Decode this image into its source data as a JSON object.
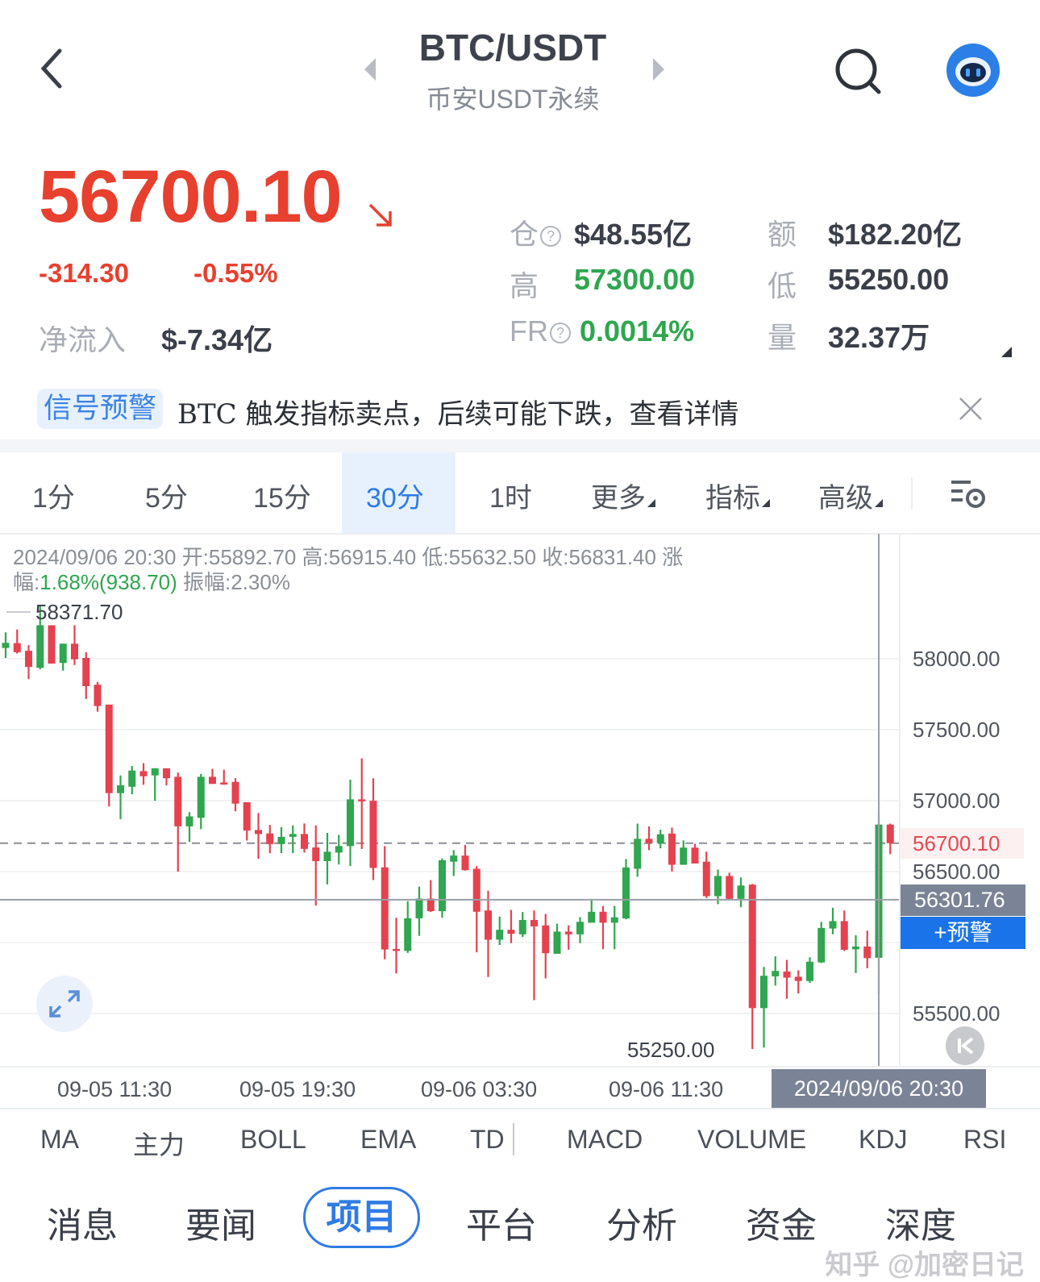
{
  "header": {
    "title": "BTC/USDT",
    "subtitle": "币安USDT永续",
    "icons": [
      "chevron-left-icon",
      "caret-left-icon",
      "caret-right-icon",
      "search-icon",
      "robot-avatar-icon"
    ]
  },
  "quote": {
    "price": "56700.10",
    "change": "-314.30",
    "change_pct": "-0.55%",
    "netflow_label": "净流入",
    "netflow_value": "$-7.34亿",
    "stats": {
      "oi_label": "仓",
      "oi_value": "$48.55亿",
      "amount_label": "额",
      "amount_value": "$182.20亿",
      "high_label": "高",
      "high_value": "57300.00",
      "low_label": "低",
      "low_value": "55250.00",
      "fr_label": "FR",
      "fr_value": "0.0014%",
      "vol_label": "量",
      "vol_value": "32.37万"
    },
    "colors": {
      "down": "#e8402f",
      "up": "#2fa64f"
    }
  },
  "signal": {
    "badge": "信号预警",
    "message": "BTC 触发指标卖点，后续可能下跌，查看详情"
  },
  "timeframes": {
    "items": [
      "1分",
      "5分",
      "15分",
      "30分",
      "1时",
      "更多",
      "指标",
      "高级"
    ],
    "selected": "30分"
  },
  "chart_info": {
    "line1": "2024/09/06 20:30 开:55892.70 高:56915.40 低:55632.50 收:56831.40  涨",
    "line2_prefix": "幅:",
    "line2_change": "1.68%(938.70)",
    "line2_suffix": " 振幅:2.30%"
  },
  "chart_data": {
    "type": "candlestick",
    "interval": "30分",
    "y_ticks": [
      "58000.00",
      "57500.00",
      "57000.00",
      "56500.00",
      "55500.00"
    ],
    "ylim": [
      55100,
      58700
    ],
    "grid": true,
    "max_label": "58371.70",
    "min_label": "55250.00",
    "last_price": "56700.10",
    "crosshair_price": "56301.76",
    "alert_button": "+预警",
    "x_ticks": [
      "09-05 11:30",
      "09-05 19:30",
      "09-06 03:30",
      "09-06 11:30"
    ],
    "crosshair_time": "2024/09/06 20:30",
    "colors": {
      "up": "#2fa64f",
      "down": "#e5414f"
    },
    "candles": [
      {
        "o": 58076,
        "h": 58186,
        "l": 58006,
        "c": 58112
      },
      {
        "o": 58110,
        "h": 58206,
        "l": 58036,
        "c": 58046
      },
      {
        "o": 58056,
        "h": 58096,
        "l": 57857,
        "c": 57942
      },
      {
        "o": 57936,
        "h": 58371.7,
        "l": 57926,
        "c": 58236
      },
      {
        "o": 58236,
        "h": 58236,
        "l": 57966,
        "c": 57966
      },
      {
        "o": 57970,
        "h": 58106,
        "l": 57916,
        "c": 58106
      },
      {
        "o": 58106,
        "h": 58236,
        "l": 57956,
        "c": 57996
      },
      {
        "o": 58006,
        "h": 58046,
        "l": 57717,
        "c": 57807
      },
      {
        "o": 57817,
        "h": 57837,
        "l": 57627,
        "c": 57667
      },
      {
        "o": 57677,
        "h": 57677,
        "l": 56959,
        "c": 57053
      },
      {
        "o": 57053,
        "h": 57178,
        "l": 56869,
        "c": 57108
      },
      {
        "o": 57098,
        "h": 57244,
        "l": 57045,
        "c": 57212
      },
      {
        "o": 57208,
        "h": 57264,
        "l": 57112,
        "c": 57172
      },
      {
        "o": 57178,
        "h": 57228,
        "l": 56999,
        "c": 57228
      },
      {
        "o": 57228,
        "h": 57228,
        "l": 57108,
        "c": 57158
      },
      {
        "o": 57168,
        "h": 57198,
        "l": 56500,
        "c": 56819
      },
      {
        "o": 56819,
        "h": 56919,
        "l": 56709,
        "c": 56889
      },
      {
        "o": 56879,
        "h": 57188,
        "l": 56799,
        "c": 57168
      },
      {
        "o": 57168,
        "h": 57224,
        "l": 57118,
        "c": 57118
      },
      {
        "o": 57128,
        "h": 57218,
        "l": 57112,
        "c": 57118
      },
      {
        "o": 57132,
        "h": 57158,
        "l": 56925,
        "c": 56979
      },
      {
        "o": 56989,
        "h": 56989,
        "l": 56719,
        "c": 56789
      },
      {
        "o": 56793,
        "h": 56913,
        "l": 56590,
        "c": 56765
      },
      {
        "o": 56769,
        "h": 56829,
        "l": 56630,
        "c": 56694
      },
      {
        "o": 56694,
        "h": 56813,
        "l": 56630,
        "c": 56745
      },
      {
        "o": 56745,
        "h": 56825,
        "l": 56630,
        "c": 56765
      },
      {
        "o": 56765,
        "h": 56839,
        "l": 56634,
        "c": 56660
      },
      {
        "o": 56670,
        "h": 56825,
        "l": 56261,
        "c": 56574
      },
      {
        "o": 56574,
        "h": 56773,
        "l": 56410,
        "c": 56640
      },
      {
        "o": 56634,
        "h": 56759,
        "l": 56550,
        "c": 56680
      },
      {
        "o": 56680,
        "h": 57148,
        "l": 56540,
        "c": 57009
      },
      {
        "o": 57009,
        "h": 57298,
        "l": 56660,
        "c": 56999
      },
      {
        "o": 56999,
        "h": 57158,
        "l": 56440,
        "c": 56526
      },
      {
        "o": 56530,
        "h": 56680,
        "l": 55882,
        "c": 55951
      },
      {
        "o": 55955,
        "h": 56175,
        "l": 55782,
        "c": 55947
      },
      {
        "o": 55941,
        "h": 56291,
        "l": 55927,
        "c": 56171
      },
      {
        "o": 56171,
        "h": 56394,
        "l": 56047,
        "c": 56310
      },
      {
        "o": 56310,
        "h": 56440,
        "l": 56215,
        "c": 56221
      },
      {
        "o": 56221,
        "h": 56594,
        "l": 56175,
        "c": 56580
      },
      {
        "o": 56570,
        "h": 56651,
        "l": 56469,
        "c": 56613
      },
      {
        "o": 56613,
        "h": 56688,
        "l": 56507,
        "c": 56510
      },
      {
        "o": 56520,
        "h": 56538,
        "l": 55931,
        "c": 56217
      },
      {
        "o": 56226,
        "h": 56365,
        "l": 55757,
        "c": 56020
      },
      {
        "o": 56020,
        "h": 56183,
        "l": 55983,
        "c": 56090
      },
      {
        "o": 56090,
        "h": 56230,
        "l": 55996,
        "c": 56062
      },
      {
        "o": 56058,
        "h": 56215,
        "l": 56039,
        "c": 56159
      },
      {
        "o": 56159,
        "h": 56226,
        "l": 55594,
        "c": 56114
      },
      {
        "o": 56121,
        "h": 56202,
        "l": 55747,
        "c": 55925
      },
      {
        "o": 55921,
        "h": 56133,
        "l": 55921,
        "c": 56077
      },
      {
        "o": 56077,
        "h": 56121,
        "l": 55949,
        "c": 56058
      },
      {
        "o": 56058,
        "h": 56179,
        "l": 55996,
        "c": 56146
      },
      {
        "o": 56140,
        "h": 56308,
        "l": 56140,
        "c": 56217
      },
      {
        "o": 56217,
        "h": 56258,
        "l": 55953,
        "c": 56140
      },
      {
        "o": 56140,
        "h": 56258,
        "l": 55953,
        "c": 56178
      },
      {
        "o": 56170,
        "h": 56589,
        "l": 56164,
        "c": 56529
      },
      {
        "o": 56520,
        "h": 56838,
        "l": 56464,
        "c": 56731
      },
      {
        "o": 56731,
        "h": 56819,
        "l": 56651,
        "c": 56701
      },
      {
        "o": 56701,
        "h": 56795,
        "l": 56664,
        "c": 56763
      },
      {
        "o": 56768,
        "h": 56810,
        "l": 56501,
        "c": 56548
      },
      {
        "o": 56548,
        "h": 56720,
        "l": 56548,
        "c": 56669
      },
      {
        "o": 56669,
        "h": 56697,
        "l": 56557,
        "c": 56557
      },
      {
        "o": 56570,
        "h": 56641,
        "l": 56314,
        "c": 56327
      },
      {
        "o": 56327,
        "h": 56514,
        "l": 56271,
        "c": 56469
      },
      {
        "o": 56469,
        "h": 56492,
        "l": 56305,
        "c": 56308
      },
      {
        "o": 56308,
        "h": 56458,
        "l": 56249,
        "c": 56402
      },
      {
        "o": 56408,
        "h": 56413,
        "l": 55250,
        "c": 55538
      },
      {
        "o": 55538,
        "h": 55828,
        "l": 55260,
        "c": 55766
      },
      {
        "o": 55762,
        "h": 55903,
        "l": 55697,
        "c": 55800
      },
      {
        "o": 55796,
        "h": 55878,
        "l": 55604,
        "c": 55753
      },
      {
        "o": 55759,
        "h": 55804,
        "l": 55641,
        "c": 55729
      },
      {
        "o": 55729,
        "h": 55897,
        "l": 55716,
        "c": 55865
      },
      {
        "o": 55860,
        "h": 56146,
        "l": 55856,
        "c": 56103
      },
      {
        "o": 56099,
        "h": 56245,
        "l": 56058,
        "c": 56151
      },
      {
        "o": 56151,
        "h": 56226,
        "l": 55940,
        "c": 55949
      },
      {
        "o": 55953,
        "h": 56052,
        "l": 55785,
        "c": 55972
      },
      {
        "o": 55972,
        "h": 56084,
        "l": 55819,
        "c": 55890
      },
      {
        "o": 55892.7,
        "h": 56915.4,
        "l": 55632.5,
        "c": 56831.4
      },
      {
        "o": 56831.4,
        "h": 56838,
        "l": 56623,
        "c": 56700.1
      }
    ]
  },
  "indicators": [
    "MA",
    "主力",
    "BOLL",
    "EMA",
    "TD",
    "MACD",
    "VOLUME",
    "KDJ",
    "RSI"
  ],
  "bottom_tabs": {
    "items": [
      "消息",
      "要闻",
      "项目",
      "平台",
      "分析",
      "资金",
      "深度"
    ],
    "selected": "项目"
  },
  "watermark": "知乎 @加密日记"
}
